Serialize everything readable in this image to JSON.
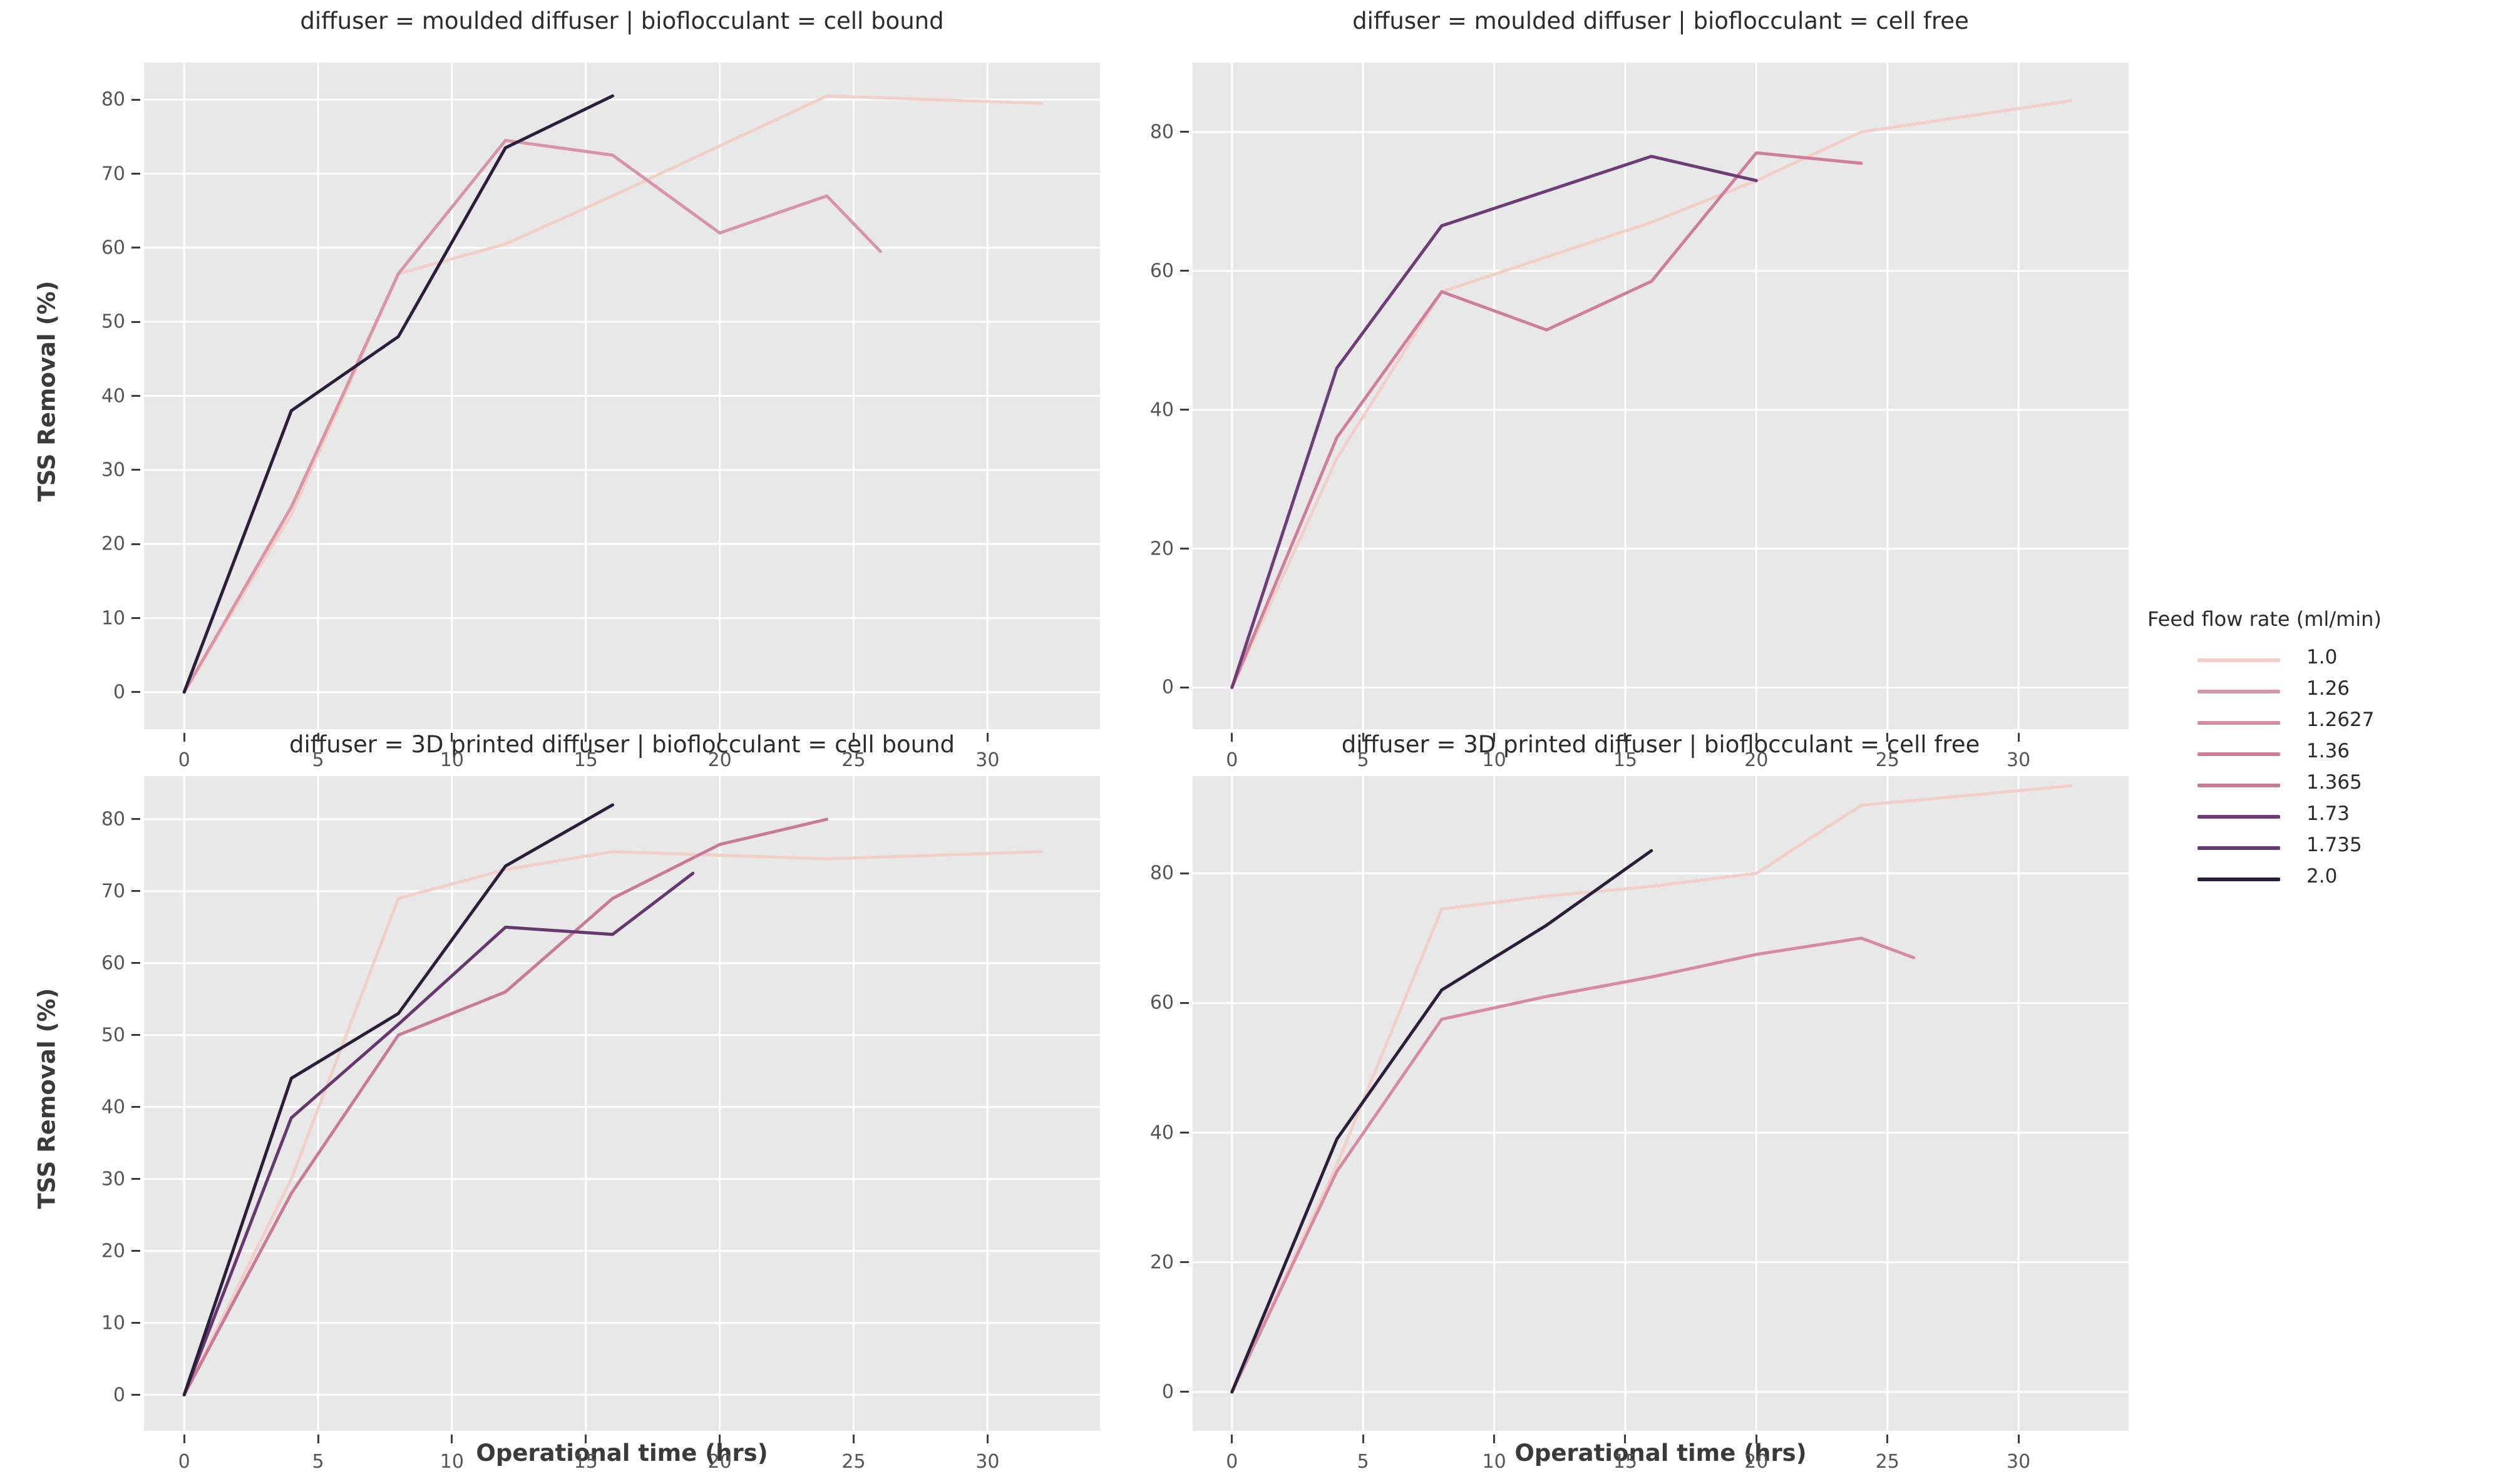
{
  "figure": {
    "background": "#ffffff",
    "plot_background": "#e8e8e8",
    "grid_color": "#ffffff",
    "series_palette_note": "sequential pink-to-dark-purple hue scale for numeric feed flow rate"
  },
  "axis": {
    "xlabel": "Operational time (hrs)",
    "ylabel": "TSS Removal (%)"
  },
  "legend": {
    "title": "Feed flow rate (ml/min)",
    "entries": [
      {
        "label": "1.0",
        "color": "#f2d0c9"
      },
      {
        "label": "1.26",
        "color": "#d795a7"
      },
      {
        "label": "1.2627",
        "color": "#d58ba0"
      },
      {
        "label": "1.36",
        "color": "#cd7f9b"
      },
      {
        "label": "1.365",
        "color": "#c87b96"
      },
      {
        "label": "1.73",
        "color": "#6e3d78"
      },
      {
        "label": "1.735",
        "color": "#673870"
      },
      {
        "label": "2.0",
        "color": "#2a1e3a"
      }
    ]
  },
  "chart_data": [
    {
      "type": "line",
      "facet_key": "tl",
      "facet_title": "diffuser = moulded diffuser | bioflocculant = cell bound",
      "xlabel": "Operational time (hrs)",
      "ylabel": "TSS Removal (%)",
      "xlim": [
        -1.5,
        34.2
      ],
      "ylim": [
        -5,
        85
      ],
      "xticks": [
        0,
        5,
        10,
        15,
        20,
        25,
        30
      ],
      "yticks": [
        0,
        10,
        20,
        30,
        40,
        50,
        60,
        70,
        80
      ],
      "grid": true,
      "series": [
        {
          "name": "1.0",
          "color": "#f2d0c9",
          "x": [
            0,
            4,
            8,
            12,
            16,
            24,
            32
          ],
          "y": [
            0,
            24,
            56.5,
            60.5,
            67,
            80.5,
            79.5
          ]
        },
        {
          "name": "1.26",
          "color": "#d795a7",
          "x": [
            0,
            4,
            8,
            12,
            16,
            20,
            24,
            26
          ],
          "y": [
            0,
            25,
            56.5,
            74.5,
            72.5,
            62,
            67,
            59.5
          ]
        },
        {
          "name": "2.0",
          "color": "#2a1e3a",
          "x": [
            0,
            4,
            8,
            12,
            16
          ],
          "y": [
            0,
            38,
            48,
            73.5,
            80.5
          ]
        }
      ]
    },
    {
      "type": "line",
      "facet_key": "tr",
      "facet_title": "diffuser = moulded diffuser | bioflocculant = cell free",
      "xlabel": "Operational time (hrs)",
      "ylabel": "TSS Removal (%)",
      "xlim": [
        -1.5,
        34.2
      ],
      "ylim": [
        -6,
        90
      ],
      "xticks": [
        0,
        5,
        10,
        15,
        20,
        25,
        30
      ],
      "yticks": [
        0,
        20,
        40,
        60,
        80
      ],
      "grid": true,
      "series": [
        {
          "name": "1.0",
          "color": "#f2d0c9",
          "x": [
            0,
            4,
            8,
            12,
            16,
            20,
            24,
            32
          ],
          "y": [
            0,
            33,
            57,
            62,
            67,
            73,
            80,
            84.5
          ]
        },
        {
          "name": "1.36",
          "color": "#cd7f9b",
          "x": [
            0,
            4,
            8,
            12,
            16,
            20,
            24
          ],
          "y": [
            0,
            36,
            57,
            51.5,
            58.5,
            77,
            75.5
          ]
        },
        {
          "name": "1.73",
          "color": "#6e3d78",
          "x": [
            0,
            4,
            8,
            12,
            16,
            20
          ],
          "y": [
            0,
            46,
            66.5,
            71.5,
            76.5,
            73
          ]
        }
      ]
    },
    {
      "type": "line",
      "facet_key": "bl",
      "facet_title": "diffuser = 3D printed diffuser | bioflocculant = cell bound",
      "xlabel": "Operational time (hrs)",
      "ylabel": "TSS Removal (%)",
      "xlim": [
        -1.5,
        34.2
      ],
      "ylim": [
        -5,
        86
      ],
      "xticks": [
        0,
        5,
        10,
        15,
        20,
        25,
        30
      ],
      "yticks": [
        0,
        10,
        20,
        30,
        40,
        50,
        60,
        70,
        80
      ],
      "grid": true,
      "series": [
        {
          "name": "1.0",
          "color": "#f2d0c9",
          "x": [
            0,
            4,
            8,
            12,
            16,
            24,
            32
          ],
          "y": [
            0,
            30,
            69,
            73,
            75.5,
            74.5,
            75.5
          ]
        },
        {
          "name": "1.365",
          "color": "#c87b96",
          "x": [
            0,
            4,
            8,
            12,
            16,
            20,
            24
          ],
          "y": [
            0,
            28,
            50,
            56,
            69,
            76.5,
            80
          ]
        },
        {
          "name": "1.735",
          "color": "#673870",
          "x": [
            0,
            4,
            8,
            12,
            16,
            19
          ],
          "y": [
            0,
            38.5,
            51.5,
            65,
            64,
            72.5
          ]
        },
        {
          "name": "2.0",
          "color": "#2a1e3a",
          "x": [
            0,
            4,
            8,
            12,
            16
          ],
          "y": [
            0,
            44,
            53,
            73.5,
            82
          ]
        }
      ]
    },
    {
      "type": "line",
      "facet_key": "br",
      "facet_title": "diffuser = 3D printed diffuser | bioflocculant = cell free",
      "xlabel": "Operational time (hrs)",
      "ylabel": "TSS Removal (%)",
      "xlim": [
        -1.5,
        34.2
      ],
      "ylim": [
        -6,
        95
      ],
      "xticks": [
        0,
        5,
        10,
        15,
        20,
        25,
        30
      ],
      "yticks": [
        0,
        20,
        40,
        60,
        80
      ],
      "grid": true,
      "series": [
        {
          "name": "1.0",
          "color": "#f2d0c9",
          "x": [
            0,
            4,
            8,
            12,
            16,
            20,
            24,
            32
          ],
          "y": [
            0,
            35,
            74.5,
            76.5,
            78,
            80,
            90.5,
            93.5
          ]
        },
        {
          "name": "1.2627",
          "color": "#d58ba0",
          "x": [
            0,
            4,
            8,
            12,
            16,
            20,
            24,
            26
          ],
          "y": [
            0,
            34,
            57.5,
            61,
            64,
            67.5,
            70,
            67
          ]
        },
        {
          "name": "2.0",
          "color": "#2a1e3a",
          "x": [
            0,
            4,
            8,
            12,
            16
          ],
          "y": [
            0,
            39,
            62,
            72,
            83.5
          ]
        }
      ]
    }
  ]
}
